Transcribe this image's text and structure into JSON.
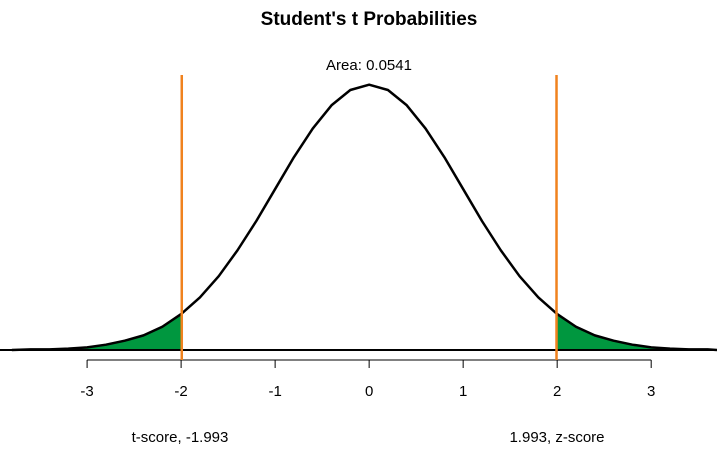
{
  "chart_data": {
    "type": "density",
    "title": "Student's t Probabilities",
    "annotation": "Area: 0.0541",
    "left_label": "t-score, -1.993",
    "right_label": "1.993, z-score",
    "x": [
      -3.8,
      -3.6,
      -3.4,
      -3.2,
      -3.0,
      -2.8,
      -2.6,
      -2.4,
      -2.2,
      -2.0,
      -1.8,
      -1.6,
      -1.4,
      -1.2,
      -1.0,
      -0.8,
      -0.6,
      -0.4,
      -0.2,
      0,
      0.2,
      0.4,
      0.6,
      0.8,
      1.0,
      1.2,
      1.4,
      1.6,
      1.8,
      2.0,
      2.2,
      2.4,
      2.6,
      2.8,
      3.0,
      3.2,
      3.4,
      3.6,
      3.7
    ],
    "values": [
      0.0,
      0.001,
      0.001,
      0.002,
      0.004,
      0.008,
      0.014,
      0.022,
      0.035,
      0.054,
      0.079,
      0.111,
      0.15,
      0.194,
      0.242,
      0.29,
      0.333,
      0.368,
      0.391,
      0.399,
      0.391,
      0.368,
      0.333,
      0.29,
      0.242,
      0.194,
      0.15,
      0.111,
      0.079,
      0.054,
      0.035,
      0.022,
      0.014,
      0.008,
      0.004,
      0.002,
      0.001,
      0.001,
      0.0
    ],
    "cutoffs": [
      -1.993,
      1.993
    ],
    "color": "#000000",
    "tail_color": "#00973f",
    "cutoff_color": "#f0821e",
    "xlim": [
      -3.82,
      3.7
    ],
    "xticks": [
      -3,
      -2,
      -1,
      0,
      1,
      2,
      3
    ],
    "ylim": [
      0,
      0.4
    ]
  }
}
